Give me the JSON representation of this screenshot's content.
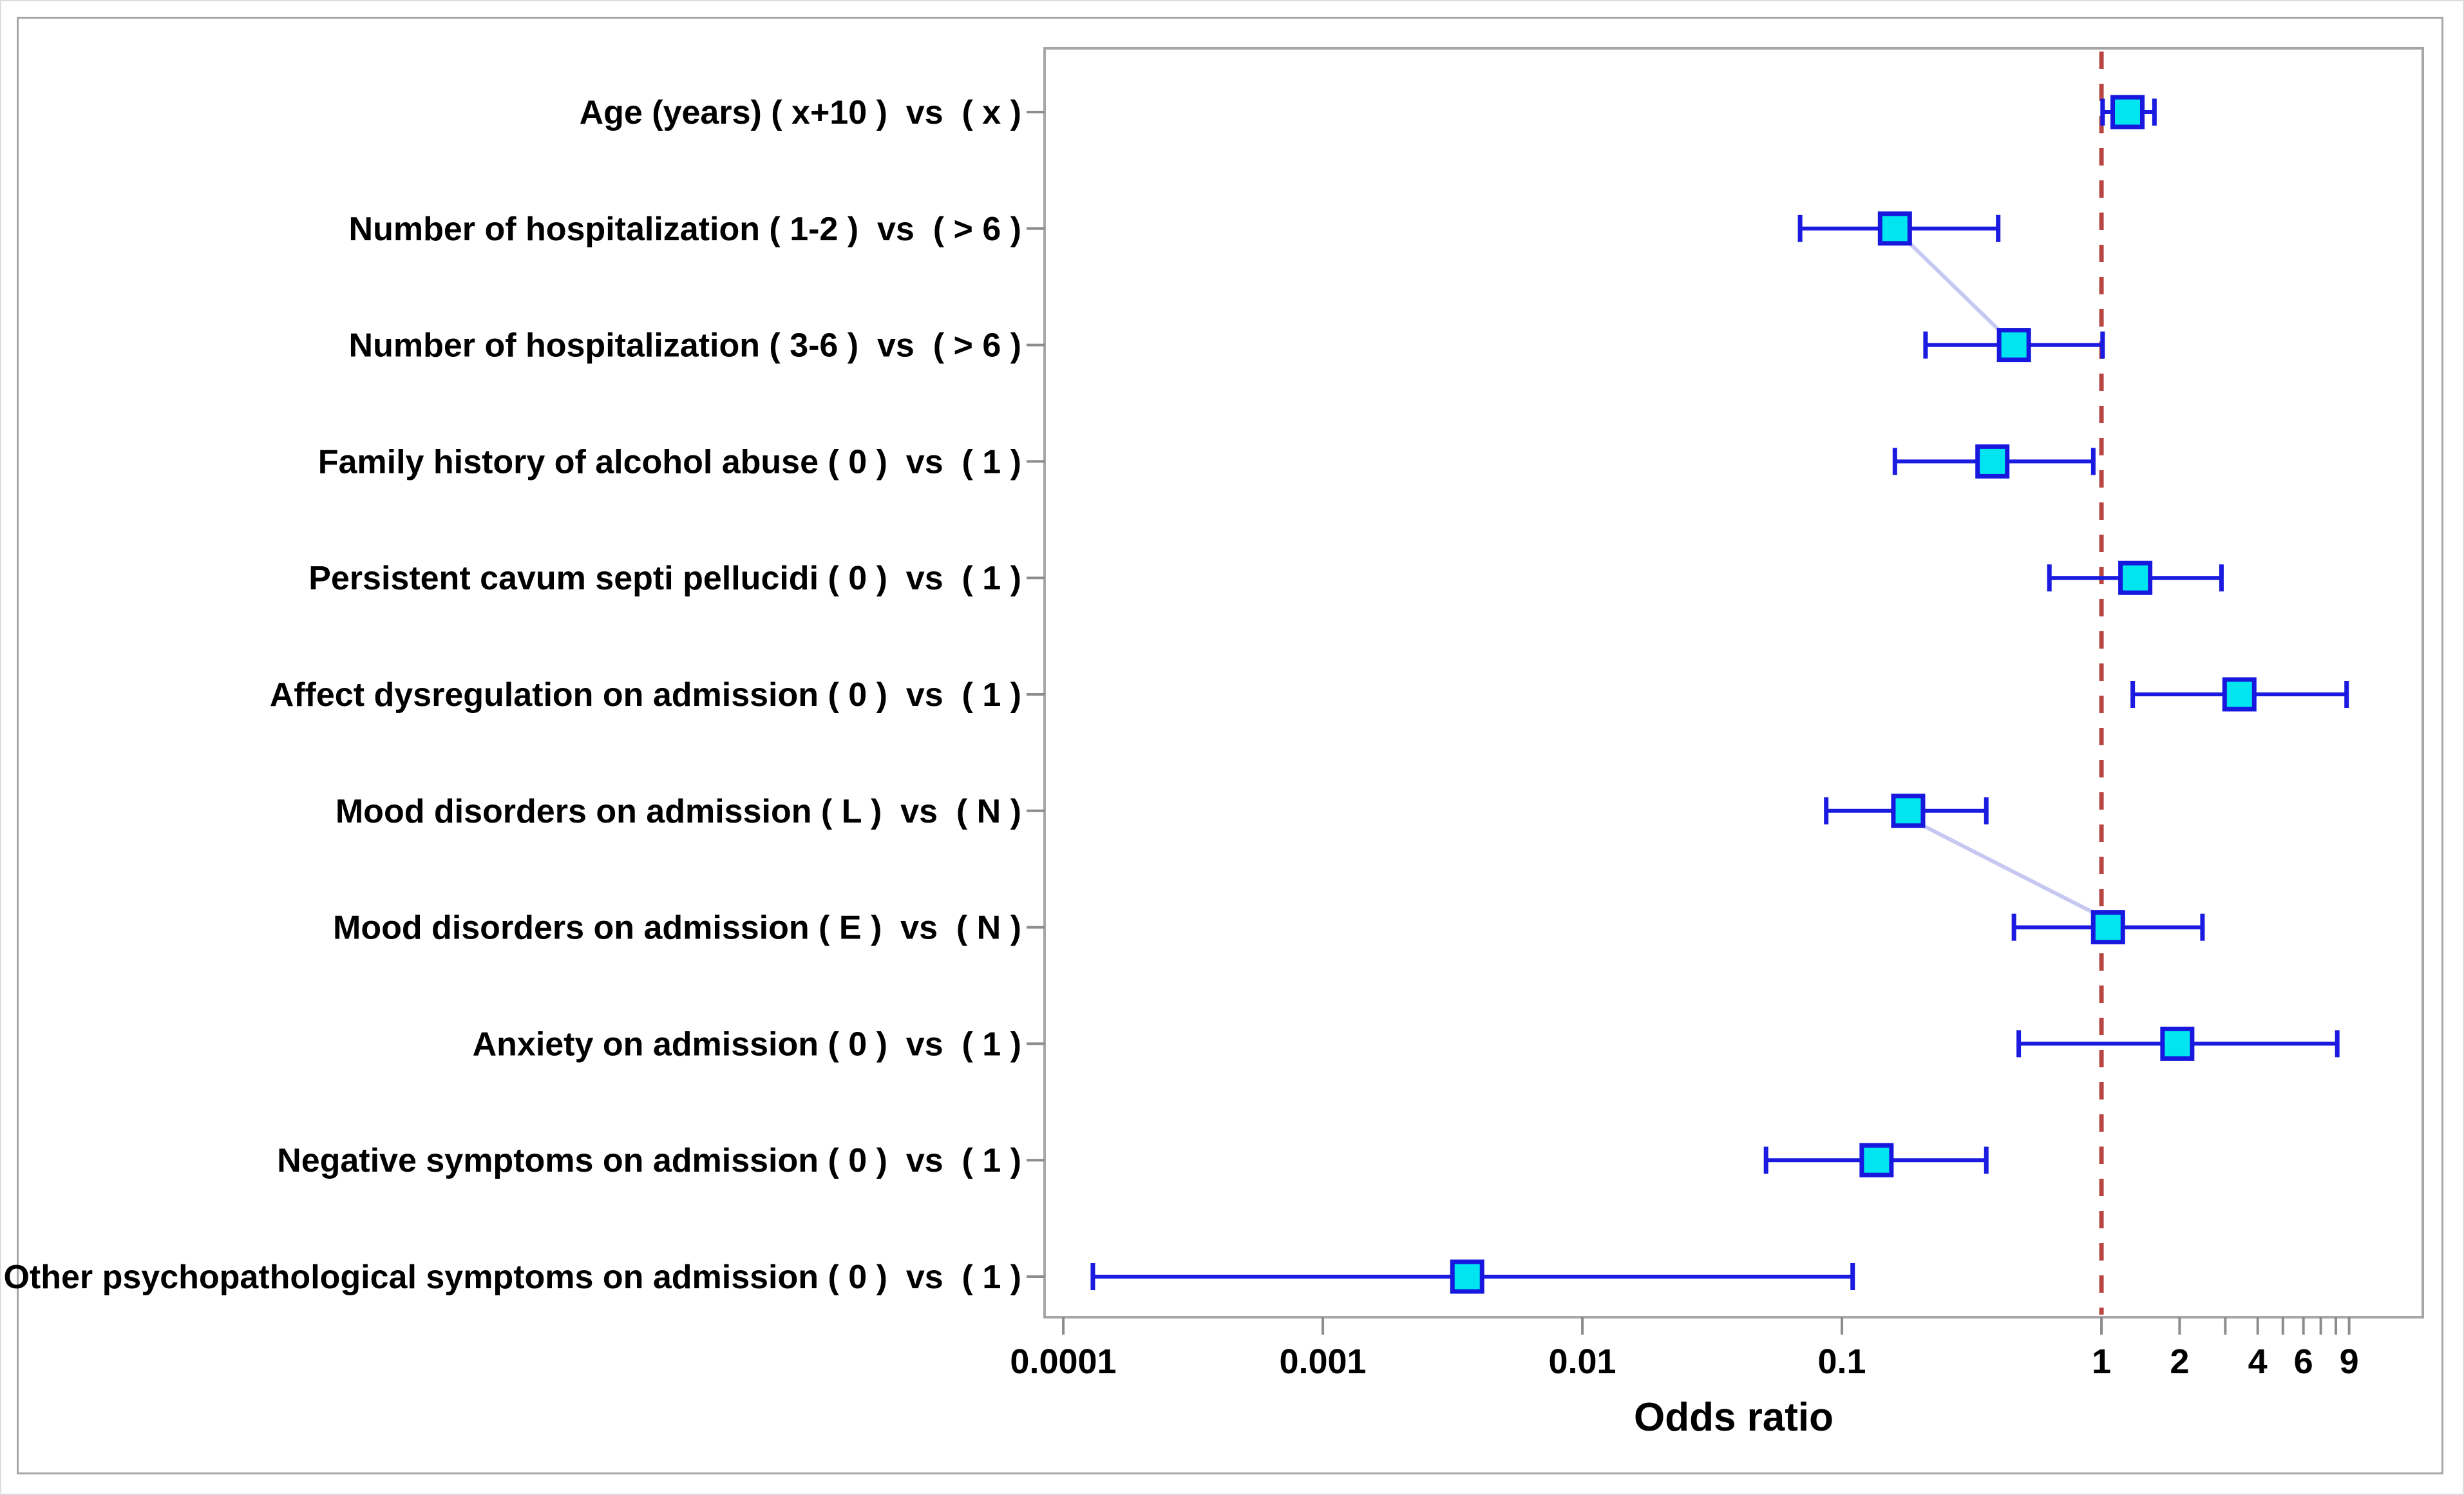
{
  "figure": {
    "axis_title": "Odds ratio"
  },
  "chart_data": {
    "type": "scatter",
    "subtype": "forest-plot",
    "title": "",
    "xlabel": "Odds ratio",
    "ylabel": "",
    "x_scale": "log",
    "x_range": [
      8.5e-05,
      17
    ],
    "grid": false,
    "legend": "none",
    "reference_line": 1,
    "x_ticks_labeled": [
      0.0001,
      0.001,
      0.01,
      0.1,
      1,
      2,
      4,
      6,
      9
    ],
    "x_ticks_minor": [
      3,
      5,
      7,
      8
    ],
    "rows": [
      {
        "label": "Age (years) ( x+10 )  vs  ( x )",
        "or": 1.26,
        "ci_low": 1.01,
        "ci_high": 1.6
      },
      {
        "label": "Number of hospitalization ( 1-2 )  vs  ( > 6 )",
        "or": 0.16,
        "ci_low": 0.069,
        "ci_high": 0.4
      },
      {
        "label": "Number of hospitalization ( 3-6 )  vs  ( > 6 )",
        "or": 0.46,
        "ci_low": 0.21,
        "ci_high": 1.01
      },
      {
        "label": "Family history of alcohol abuse ( 0 )  vs  ( 1 )",
        "or": 0.38,
        "ci_low": 0.16,
        "ci_high": 0.93
      },
      {
        "label": "Persistent cavum septi pellucidi ( 0 )  vs  ( 1 )",
        "or": 1.35,
        "ci_low": 0.63,
        "ci_high": 2.9
      },
      {
        "label": "Affect dysregulation on admission ( 0 )  vs  ( 1 )",
        "or": 3.4,
        "ci_low": 1.32,
        "ci_high": 8.8
      },
      {
        "label": "Mood disorders on admission ( L )  vs  ( N )",
        "or": 0.18,
        "ci_low": 0.087,
        "ci_high": 0.36
      },
      {
        "label": "Mood disorders on admission ( E )  vs  ( N )",
        "or": 1.06,
        "ci_low": 0.46,
        "ci_high": 2.45
      },
      {
        "label": "Anxiety on admission ( 0 )  vs  ( 1 )",
        "or": 1.96,
        "ci_low": 0.48,
        "ci_high": 8.1
      },
      {
        "label": "Negative symptoms on admission ( 0 )  vs  ( 1 )",
        "or": 0.136,
        "ci_low": 0.051,
        "ci_high": 0.36
      },
      {
        "label": "Other psychopathological symptoms on admission ( 0 )  vs  ( 1 )",
        "or": 0.0036,
        "ci_low": 0.00013,
        "ci_high": 0.11
      }
    ],
    "connected_pairs": [
      [
        1,
        2
      ],
      [
        6,
        7
      ]
    ],
    "colors": {
      "marker_fill": "#00e5f0",
      "marker_border": "#1717dd",
      "ci_line": "#1a1ae0",
      "reference_line": "#b84743",
      "connector": "#c6c8f2",
      "frame": "#a6a6a6",
      "tick": "#8c8c8c",
      "text": "#000000",
      "plot_background": "#ffffff"
    }
  }
}
